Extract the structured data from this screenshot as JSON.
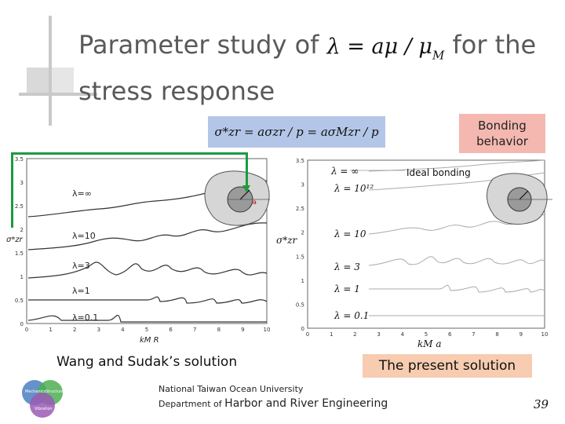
{
  "title": {
    "line1_text": "Parameter study of",
    "line1_math": "λ = aμ / μ",
    "line1_math_sub": "M",
    "line1_end": "for the",
    "line2": "stress response"
  },
  "equation": "σ*zr = aσzr / p = aσMzr / p",
  "bonding_label": {
    "line1": "Bonding",
    "line2": "behavior"
  },
  "left_plot": {
    "curves": [
      "λ=∞",
      "λ=10",
      "λ=3",
      "λ=1",
      "λ=0.1"
    ],
    "y_ticks": [
      "3.5",
      "3",
      "2.5",
      "2",
      "1.5",
      "1",
      "0.5",
      "0"
    ],
    "x_ticks": [
      "0",
      "1",
      "2",
      "3",
      "4",
      "5",
      "6",
      "7",
      "8",
      "9",
      "10"
    ],
    "y_label": "σ*zr",
    "x_label": "kM R",
    "inset_label": "a"
  },
  "right_plot": {
    "ideal_label": "Ideal bonding",
    "curves": [
      "λ = ∞",
      "λ = 10¹²",
      "λ = 10",
      "λ = 3",
      "λ = 1",
      "λ = 0.1"
    ],
    "y_ticks": [
      "3.5",
      "3",
      "2.5",
      "2",
      "1.5",
      "1",
      "0.5",
      "0"
    ],
    "x_ticks": [
      "0",
      "1",
      "2",
      "3",
      "4",
      "5",
      "6",
      "7",
      "8",
      "9",
      "10"
    ],
    "y_label": "σ*zr",
    "x_label": "kM a"
  },
  "captions": {
    "left": "Wang and Sudak’s solution",
    "right": "The present solution"
  },
  "footer": {
    "univ": "National Taiwan Ocean University",
    "dept_prefix": "Department of",
    "dept_name": "Harbor and River Engineering",
    "logo_words": [
      "Mechanics",
      "Structure",
      "Vibration"
    ]
  },
  "page_number": "39",
  "colors": {
    "accent_green": "#1a9c3e",
    "eq_box": "#b4c6e7",
    "bonding_box": "#f4b8b0",
    "caption_box": "#f7ccb0"
  }
}
